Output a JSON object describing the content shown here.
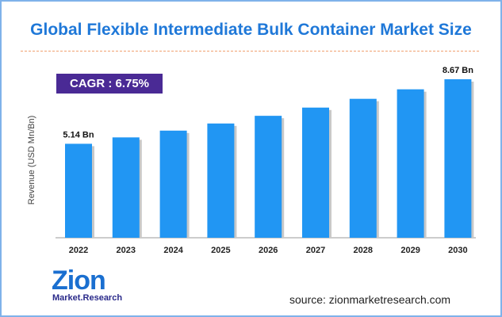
{
  "chart_data": {
    "type": "bar",
    "title": "Global Flexible Intermediate Bulk Container Market Size",
    "ylabel": "Revenue (USD Mn/Bn)",
    "xlabel": "",
    "categories": [
      "2022",
      "2023",
      "2024",
      "2025",
      "2026",
      "2027",
      "2028",
      "2029",
      "2030"
    ],
    "values": [
      5.14,
      5.49,
      5.86,
      6.25,
      6.67,
      7.12,
      7.6,
      8.12,
      8.67
    ],
    "ylim": [
      0,
      9
    ],
    "data_labels": [
      {
        "index": 0,
        "text": "5.14 Bn"
      },
      {
        "index": 8,
        "text": "8.67 Bn"
      }
    ],
    "grid": false,
    "bar_color": "#2196f3",
    "annotation": "CAGR : 6.75%"
  },
  "source": "source: zionmarketresearch.com",
  "logo": {
    "name": "Zion",
    "tagline": "Market.Research"
  }
}
